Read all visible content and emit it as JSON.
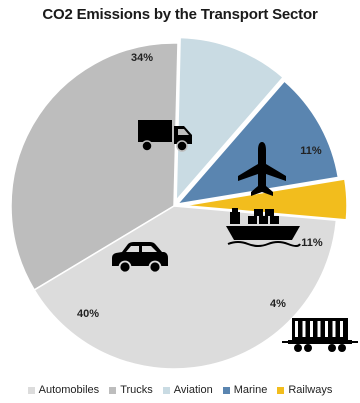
{
  "chart_data": {
    "type": "pie",
    "title": "CO2 Emissions by the Transport Sector",
    "start_angle_deg": 211,
    "direction": "clockwise",
    "slices": [
      {
        "name": "Trucks",
        "value": 34,
        "label": "34%",
        "color": "#bdbdbd",
        "icon": "truck-icon"
      },
      {
        "name": "Aviation",
        "value": 11,
        "label": "11%",
        "color": "#c9dbe3",
        "icon": "airplane-icon"
      },
      {
        "name": "Marine",
        "value": 11,
        "label": "11%",
        "color": "#5a85b0",
        "icon": "ship-icon"
      },
      {
        "name": "Railways",
        "value": 4,
        "label": "4%",
        "color": "#f2bd1d",
        "icon": "train-icon"
      },
      {
        "name": "Automobiles",
        "value": 40,
        "label": "40%",
        "color": "#dcdcdc",
        "icon": "car-icon"
      }
    ],
    "legend": {
      "position": "bottom",
      "items": [
        {
          "label": "Automobiles",
          "color": "#dcdcdc"
        },
        {
          "label": "Trucks",
          "color": "#bdbdbd"
        },
        {
          "label": "Aviation",
          "color": "#c9dbe3"
        },
        {
          "label": "Marine",
          "color": "#5a85b0"
        },
        {
          "label": "Railways",
          "color": "#f2bd1d"
        }
      ]
    }
  }
}
